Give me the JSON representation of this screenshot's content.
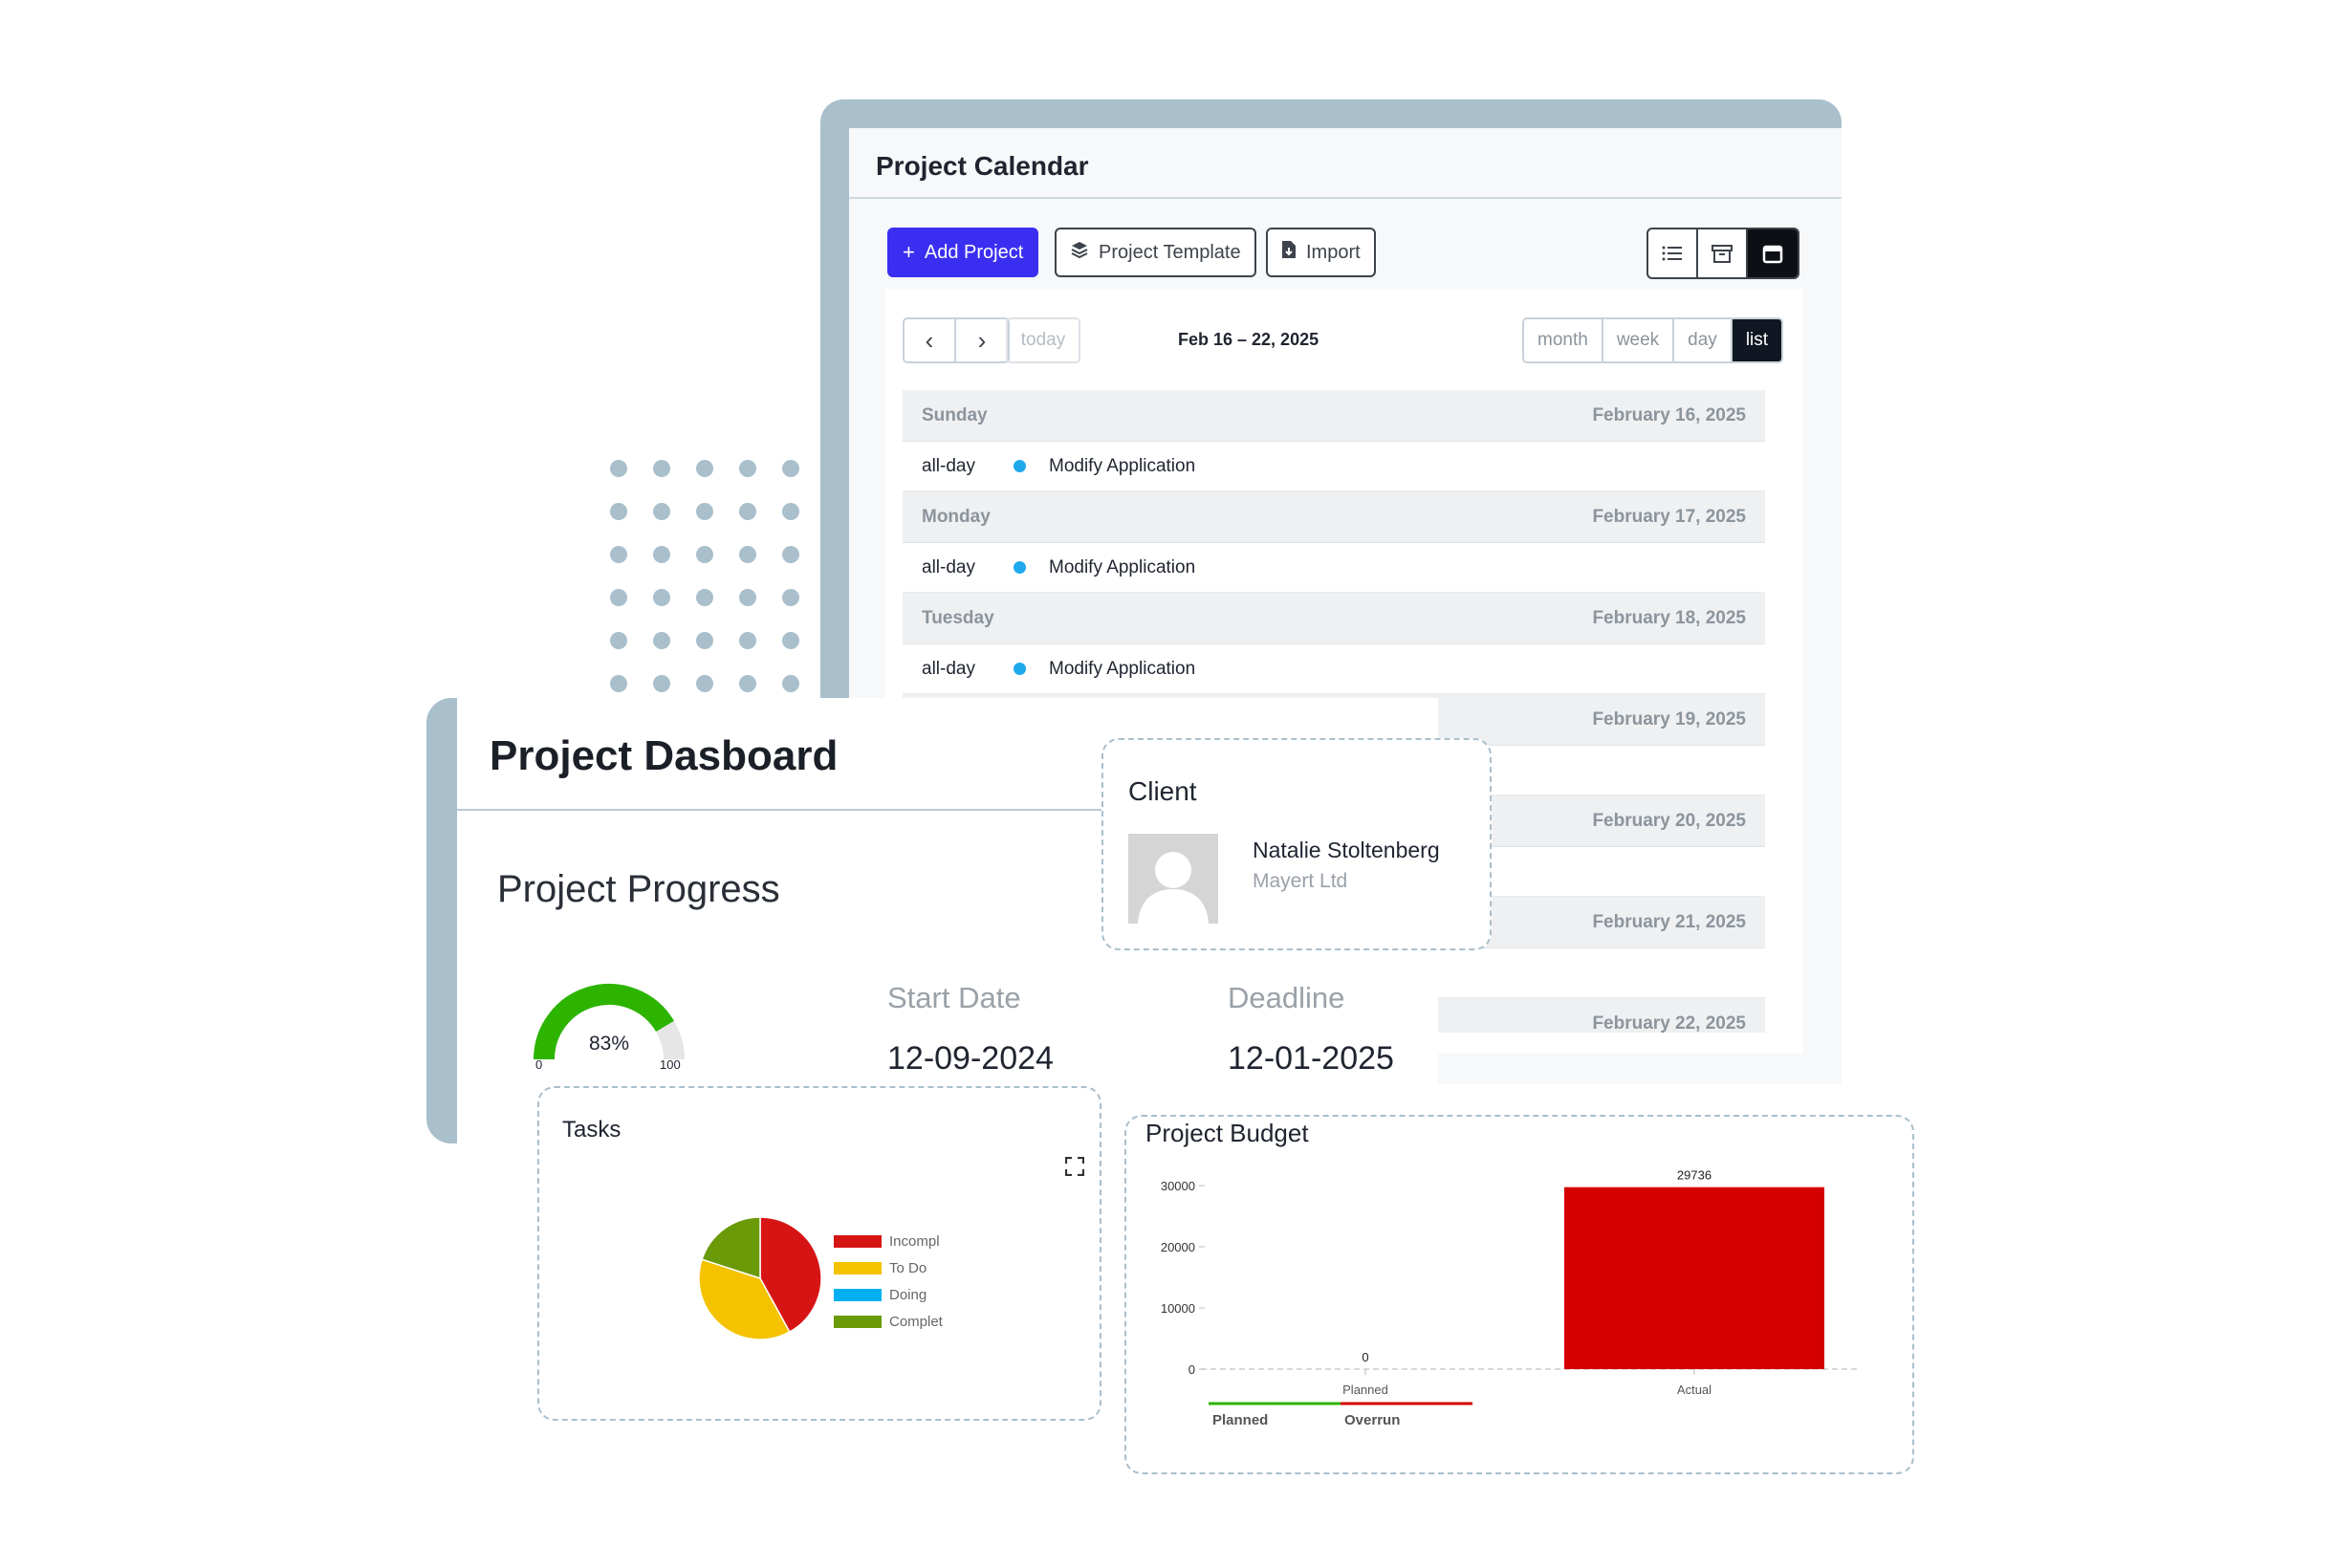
{
  "calendar": {
    "title": "Project Calendar",
    "toolbar": {
      "add_project": "Add Project",
      "project_template": "Project Template",
      "import": "Import"
    },
    "view_icons": [
      "list-icon",
      "archive-icon",
      "calendar-icon"
    ],
    "nav": {
      "today": "today",
      "range": "Feb 16 – 22, 2025",
      "modes": [
        "month",
        "week",
        "day",
        "list"
      ],
      "active_mode": "list"
    },
    "days": [
      {
        "weekday": "Sunday",
        "date": "February 16, 2025",
        "time": "all-day",
        "event": "Modify Application"
      },
      {
        "weekday": "Monday",
        "date": "February 17, 2025",
        "time": "all-day",
        "event": "Modify Application"
      },
      {
        "weekday": "Tuesday",
        "date": "February 18, 2025",
        "time": "all-day",
        "event": "Modify Application"
      },
      {
        "weekday": "",
        "date": "February 19, 2025",
        "time": "",
        "event": ""
      },
      {
        "weekday": "",
        "date": "February 20, 2025",
        "time": "",
        "event": ""
      },
      {
        "weekday": "",
        "date": "February 21, 2025",
        "time": "",
        "event": ""
      },
      {
        "weekday": "",
        "date": "February 22, 2025",
        "time": "",
        "event": ""
      }
    ],
    "event_color": "#1fa9ec"
  },
  "dashboard": {
    "title": "Project Dasboard",
    "progress_title": "Project Progress",
    "gauge": {
      "value": 83,
      "label": "83%",
      "min": "0",
      "max": "100",
      "color": "#2db400",
      "track": "#e6e6e6"
    },
    "start_date_label": "Start Date",
    "start_date": "12-09-2024",
    "deadline_label": "Deadline",
    "deadline": "12-01-2025"
  },
  "client": {
    "title": "Client",
    "name": "Natalie Stoltenberg",
    "company": "Mayert Ltd"
  },
  "tasks": {
    "title": "Tasks",
    "chart_data": {
      "type": "pie",
      "labels": [
        "Incompl",
        "To Do",
        "Doing",
        "Complet"
      ],
      "values": [
        42,
        38,
        0,
        20
      ],
      "colors": [
        "#d71414",
        "#f5c200",
        "#00b0f0",
        "#6a9a08"
      ]
    }
  },
  "budget": {
    "title": "Project Budget",
    "chart_data": {
      "type": "bar",
      "categories": [
        "Planned",
        "Actual"
      ],
      "values": [
        0,
        29736
      ],
      "value_labels": [
        "0",
        "29736"
      ],
      "yticks": [
        0,
        10000,
        20000,
        30000
      ],
      "ylim": [
        0,
        30000
      ],
      "bar_color": "#d40000",
      "legend": [
        {
          "name": "Planned",
          "color": "#2db400"
        },
        {
          "name": "Overrun",
          "color": "#d40000"
        }
      ]
    }
  }
}
